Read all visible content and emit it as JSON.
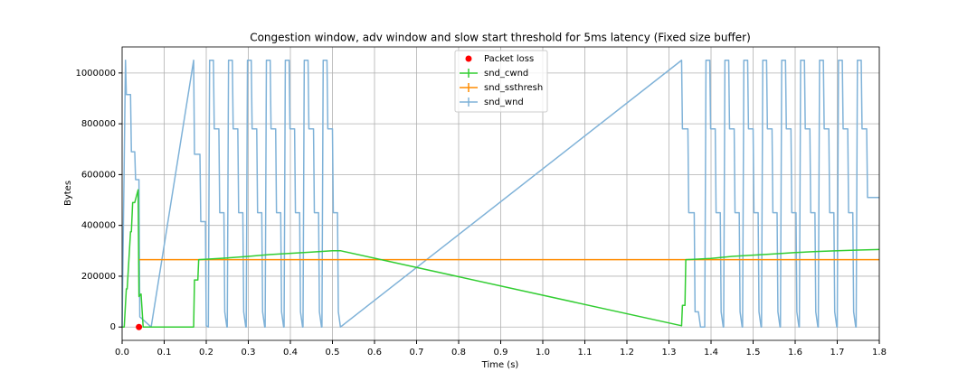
{
  "chart_data": {
    "type": "line",
    "title": "Congestion window, adv window and slow start threshold for 5ms latency (Fixed size buffer)",
    "xlabel": "Time (s)",
    "ylabel": "Bytes",
    "xlim": [
      0,
      1.8
    ],
    "ylim": [
      -52500,
      1102500
    ],
    "xticks": [
      {
        "value": 0,
        "label": "0.0"
      },
      0.1,
      0.2,
      0.3,
      0.4,
      0.5,
      0.6,
      0.7,
      0.8,
      0.9,
      {
        "value": 1,
        "label": "1.0"
      },
      1.1,
      1.2,
      1.3,
      1.4,
      1.5,
      1.6,
      1.7,
      1.8
    ],
    "yticks": [
      0,
      200000,
      400000,
      600000,
      800000,
      1000000
    ],
    "grid": true,
    "legend": "upper center",
    "series": [
      {
        "name": "Packet loss",
        "color": "#ff0000",
        "style": "marker",
        "x": [
          0.04
        ],
        "values": [
          0
        ]
      },
      {
        "name": "snd_cwnd",
        "color": "#32cd32",
        "style": "line",
        "x": [
          0,
          0.005,
          0.01,
          0.012,
          0.02,
          0.022,
          0.025,
          0.03,
          0.038,
          0.04,
          0.045,
          0.05,
          0.17,
          0.172,
          0.18,
          0.182,
          0.25,
          0.3,
          0.35,
          0.4,
          0.45,
          0.5,
          0.52,
          1.33,
          1.332,
          1.338,
          1.34,
          1.4,
          1.45,
          1.5,
          1.55,
          1.6,
          1.65,
          1.7,
          1.75,
          1.8
        ],
        "values": [
          0,
          0,
          150000,
          150000,
          375000,
          375000,
          490000,
          490000,
          540000,
          120000,
          130000,
          0,
          0,
          185000,
          185000,
          265000,
          272000,
          278000,
          285000,
          290000,
          295000,
          300000,
          300000,
          5000,
          85000,
          85000,
          265000,
          270000,
          278000,
          283000,
          288000,
          293000,
          297000,
          300000,
          303000,
          305000
        ]
      },
      {
        "name": "snd_ssthresh",
        "color": "#ff8c00",
        "style": "line",
        "x": [
          0.04,
          1.8
        ],
        "values": [
          265000,
          265000
        ]
      },
      {
        "name": "snd_wnd",
        "color": "#7fb2d8",
        "style": "line",
        "x": [
          0,
          0.008,
          0.01,
          0.02,
          0.022,
          0.03,
          0.032,
          0.04,
          0.042,
          0.069,
          0.17,
          0.172,
          0.185,
          0.187,
          0.198,
          0.2,
          0.205,
          0.208,
          0.217,
          0.219,
          0.23,
          0.232,
          0.242,
          0.244,
          0.249,
          0.25,
          0.253,
          0.262,
          0.264,
          0.275,
          0.277,
          0.287,
          0.289,
          0.294,
          0.295,
          0.298,
          0.307,
          0.309,
          0.32,
          0.322,
          0.332,
          0.334,
          0.339,
          0.34,
          0.343,
          0.352,
          0.354,
          0.365,
          0.367,
          0.377,
          0.379,
          0.384,
          0.385,
          0.388,
          0.397,
          0.399,
          0.41,
          0.412,
          0.422,
          0.424,
          0.429,
          0.43,
          0.433,
          0.442,
          0.444,
          0.455,
          0.457,
          0.467,
          0.469,
          0.474,
          0.475,
          0.478,
          0.487,
          0.489,
          0.5,
          0.502,
          0.512,
          0.514,
          0.519,
          1.33,
          1.332,
          1.345,
          1.347,
          1.36,
          1.362,
          1.37,
          1.375,
          1.385,
          1.388,
          1.397,
          1.399,
          1.41,
          1.412,
          1.422,
          1.424,
          1.429,
          1.43,
          1.433,
          1.442,
          1.444,
          1.455,
          1.457,
          1.467,
          1.469,
          1.474,
          1.475,
          1.478,
          1.487,
          1.489,
          1.5,
          1.502,
          1.512,
          1.514,
          1.519,
          1.52,
          1.523,
          1.532,
          1.534,
          1.545,
          1.547,
          1.557,
          1.559,
          1.564,
          1.565,
          1.568,
          1.577,
          1.579,
          1.59,
          1.592,
          1.602,
          1.604,
          1.609,
          1.61,
          1.613,
          1.622,
          1.624,
          1.635,
          1.637,
          1.647,
          1.649,
          1.654,
          1.655,
          1.658,
          1.667,
          1.669,
          1.68,
          1.682,
          1.692,
          1.694,
          1.699,
          1.7,
          1.703,
          1.712,
          1.714,
          1.725,
          1.727,
          1.737,
          1.739,
          1.744,
          1.745,
          1.748,
          1.757,
          1.759,
          1.77,
          1.772,
          1.8
        ],
        "values": [
          0,
          1050000,
          915000,
          915000,
          690000,
          690000,
          580000,
          580000,
          40000,
          0,
          1050000,
          680000,
          680000,
          415000,
          415000,
          5000,
          0,
          1050000,
          1050000,
          780000,
          780000,
          450000,
          450000,
          60000,
          0,
          0,
          1050000,
          1050000,
          780000,
          780000,
          450000,
          450000,
          60000,
          0,
          0,
          1050000,
          1050000,
          780000,
          780000,
          450000,
          450000,
          60000,
          0,
          0,
          1050000,
          1050000,
          780000,
          780000,
          450000,
          450000,
          60000,
          0,
          0,
          1050000,
          1050000,
          780000,
          780000,
          450000,
          450000,
          60000,
          0,
          0,
          1050000,
          1050000,
          780000,
          780000,
          450000,
          450000,
          60000,
          0,
          0,
          1050000,
          1050000,
          780000,
          780000,
          450000,
          450000,
          60000,
          0,
          1050000,
          780000,
          780000,
          450000,
          450000,
          60000,
          60000,
          0,
          0,
          1050000,
          1050000,
          780000,
          780000,
          450000,
          450000,
          60000,
          0,
          0,
          1050000,
          1050000,
          780000,
          780000,
          450000,
          450000,
          60000,
          0,
          0,
          1050000,
          1050000,
          780000,
          780000,
          450000,
          450000,
          60000,
          0,
          0,
          1050000,
          1050000,
          780000,
          780000,
          450000,
          450000,
          60000,
          0,
          0,
          1050000,
          1050000,
          780000,
          780000,
          450000,
          450000,
          60000,
          0,
          0,
          1050000,
          1050000,
          780000,
          780000,
          450000,
          450000,
          60000,
          0,
          0,
          1050000,
          1050000,
          780000,
          780000,
          450000,
          450000,
          60000,
          0,
          0,
          1050000,
          1050000,
          780000,
          780000,
          450000,
          450000,
          60000,
          0,
          0,
          1050000,
          1050000,
          780000,
          780000,
          510000,
          510000
        ]
      }
    ]
  }
}
